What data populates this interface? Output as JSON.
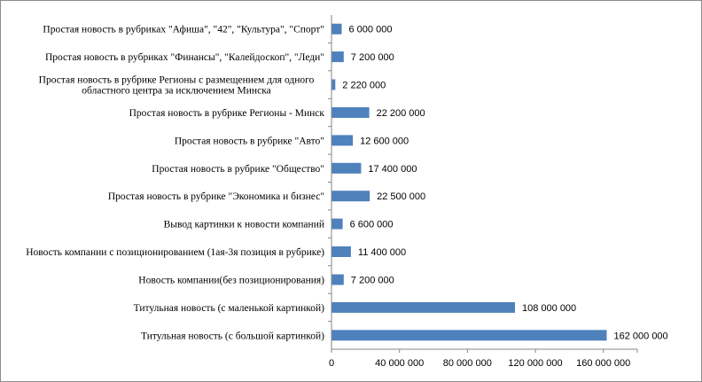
{
  "chart_data": {
    "type": "bar",
    "orientation": "horizontal",
    "categories": [
      "Простая новость в рубриках \"Афиша\", \"42\", \"Культура\", \"Спорт\"",
      "Простая новость в рубриках \"Финансы\",  \"Калейдоскоп\", \"Леди\"",
      "Простая новость  в рубрике Регионы с размещением  для одного\nобластного центра за исключением  Минска",
      "Простая новость в рубрике Регионы - Минск",
      "Простая новость в рубрике \"Авто\"",
      "Простая новость в рубрике \"Общество\"",
      "Простая новость в рубрике \"Экономика и бизнес\"",
      "Вывод картинки к новости компаний",
      "Новость компании  с позиционированием  (1ая-3я позиция в рубрике)",
      "Новость компании(без  позиционирования)",
      "Титульная новость (с маленькой  картинкой)",
      "Титульная новость (с большой картинкой)"
    ],
    "values": [
      6000000,
      7200000,
      2220000,
      22200000,
      12600000,
      17400000,
      22500000,
      6600000,
      11400000,
      7200000,
      108000000,
      162000000
    ],
    "value_labels": [
      "6 000 000",
      "7 200 000",
      "2 220 000",
      "22 200 000",
      "12 600 000",
      "17 400 000",
      "22 500 000",
      "6 600 000",
      "11 400 000",
      "7 200 000",
      "108 000 000",
      "162 000 000"
    ],
    "x_ticks": [
      0,
      40000000,
      80000000,
      120000000,
      160000000
    ],
    "x_tick_labels": [
      "0",
      "40 000 000",
      "80 000 000",
      "120 000 000",
      "160 000 000"
    ],
    "xlim": [
      0,
      180000000
    ],
    "bar_color": "#4f81bd",
    "grid": false,
    "legend": "none",
    "title": "",
    "xlabel": "",
    "ylabel": ""
  }
}
